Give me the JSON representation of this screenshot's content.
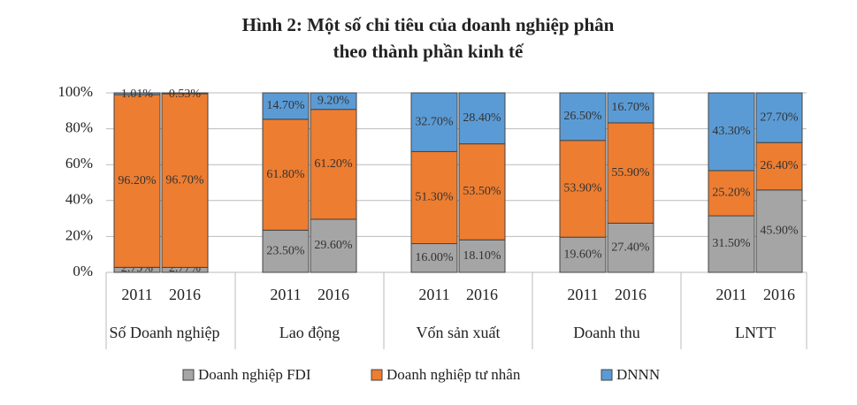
{
  "chart_data": {
    "type": "stacked_bar",
    "title": [
      "Hình 2: Một số chỉ tiêu của doanh nghiệp phân",
      "theo thành phần kinh tế"
    ],
    "groups": [
      "Số Doanh nghiệp",
      "Lao động",
      "Vốn sản xuất",
      "Doanh thu",
      "LNTT"
    ],
    "categories": [
      "2011",
      "2016",
      "2011",
      "2016",
      "2011",
      "2016",
      "2011",
      "2016",
      "2011",
      "2016"
    ],
    "ylim": [
      0,
      100
    ],
    "yticks": [
      {
        "value": 0,
        "label": "0%"
      },
      {
        "value": 20,
        "label": "20%"
      },
      {
        "value": 40,
        "label": "40%"
      },
      {
        "value": 60,
        "label": "60%"
      },
      {
        "value": 80,
        "label": "80%"
      },
      {
        "value": 100,
        "label": "100%"
      }
    ],
    "grid": true,
    "series": [
      {
        "name": "Doanh nghiệp FDI",
        "color": "#a5a5a5",
        "values": [
          2.79,
          2.77,
          23.5,
          29.6,
          16.0,
          18.1,
          19.6,
          27.4,
          31.5,
          45.9
        ],
        "value_labels": [
          "2.79%",
          "2.77%",
          "23.50%",
          "29.60%",
          "16.00%",
          "18.10%",
          "19.60%",
          "27.40%",
          "31.50%",
          "45.90%"
        ]
      },
      {
        "name": "Doanh nghiệp tư nhân",
        "color": "#ed7d31",
        "values": [
          96.2,
          96.7,
          61.8,
          61.2,
          51.3,
          53.5,
          53.9,
          55.9,
          25.2,
          26.4
        ],
        "value_labels": [
          "96.20%",
          "96.70%",
          "61.80%",
          "61.20%",
          "51.30%",
          "53.50%",
          "53.90%",
          "55.90%",
          "25.20%",
          "26.40%"
        ]
      },
      {
        "name": "DNNN",
        "color": "#5b9bd5",
        "values": [
          1.01,
          0.53,
          14.7,
          9.2,
          32.7,
          28.4,
          26.5,
          16.7,
          43.3,
          27.7
        ],
        "value_labels": [
          "1.01%",
          "0.53%",
          "14.70%",
          "9.20%",
          "32.70%",
          "28.40%",
          "26.50%",
          "16.70%",
          "43.30%",
          "27.70%"
        ]
      }
    ]
  }
}
